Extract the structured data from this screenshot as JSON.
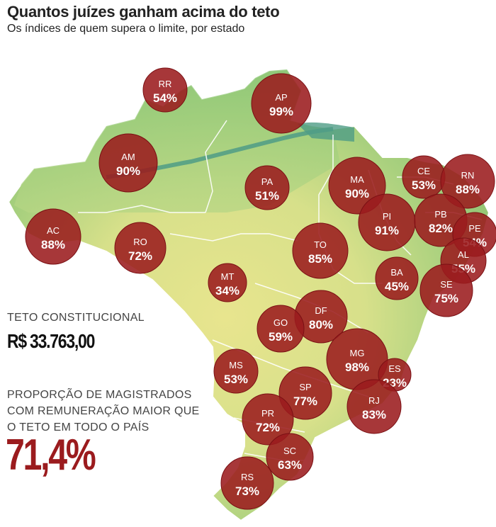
{
  "header": {
    "title": "Quantos juízes ganham acima do teto",
    "subtitle": "Os índices de quem supera o limite, por estado"
  },
  "teto": {
    "label": "TETO CONSTITUCIONAL",
    "value": "R$ 33.763,00"
  },
  "proportion": {
    "label_lines": [
      "PROPORÇÃO DE MAGISTRADOS",
      "COM REMUNERAÇÃO MAIOR QUE",
      "O TETO EM TODO O PAÍS"
    ],
    "value": "71,4%"
  },
  "colors": {
    "bubble": "#9b1b1e",
    "bubble_stroke": "#7a1014",
    "map_green": "#7fbf6a",
    "map_yellow": "#e9e48f",
    "map_teal": "#4f9c86"
  },
  "states": [
    {
      "uf": "RR",
      "pct": "54%"
    },
    {
      "uf": "AP",
      "pct": "99%"
    },
    {
      "uf": "AM",
      "pct": "90%"
    },
    {
      "uf": "PA",
      "pct": "51%"
    },
    {
      "uf": "MA",
      "pct": "90%"
    },
    {
      "uf": "CE",
      "pct": "53%"
    },
    {
      "uf": "RN",
      "pct": "88%"
    },
    {
      "uf": "PI",
      "pct": "91%"
    },
    {
      "uf": "PB",
      "pct": "82%"
    },
    {
      "uf": "PE",
      "pct": "54%"
    },
    {
      "uf": "AC",
      "pct": "88%"
    },
    {
      "uf": "RO",
      "pct": "72%"
    },
    {
      "uf": "TO",
      "pct": "85%"
    },
    {
      "uf": "AL",
      "pct": "55%"
    },
    {
      "uf": "BA",
      "pct": "45%"
    },
    {
      "uf": "SE",
      "pct": "75%"
    },
    {
      "uf": "MT",
      "pct": "34%"
    },
    {
      "uf": "DF",
      "pct": "80%"
    },
    {
      "uf": "GO",
      "pct": "59%"
    },
    {
      "uf": "MG",
      "pct": "98%"
    },
    {
      "uf": "ES",
      "pct": "23%"
    },
    {
      "uf": "MS",
      "pct": "53%"
    },
    {
      "uf": "SP",
      "pct": "77%"
    },
    {
      "uf": "RJ",
      "pct": "83%"
    },
    {
      "uf": "PR",
      "pct": "72%"
    },
    {
      "uf": "SC",
      "pct": "63%"
    },
    {
      "uf": "RS",
      "pct": "73%"
    }
  ]
}
